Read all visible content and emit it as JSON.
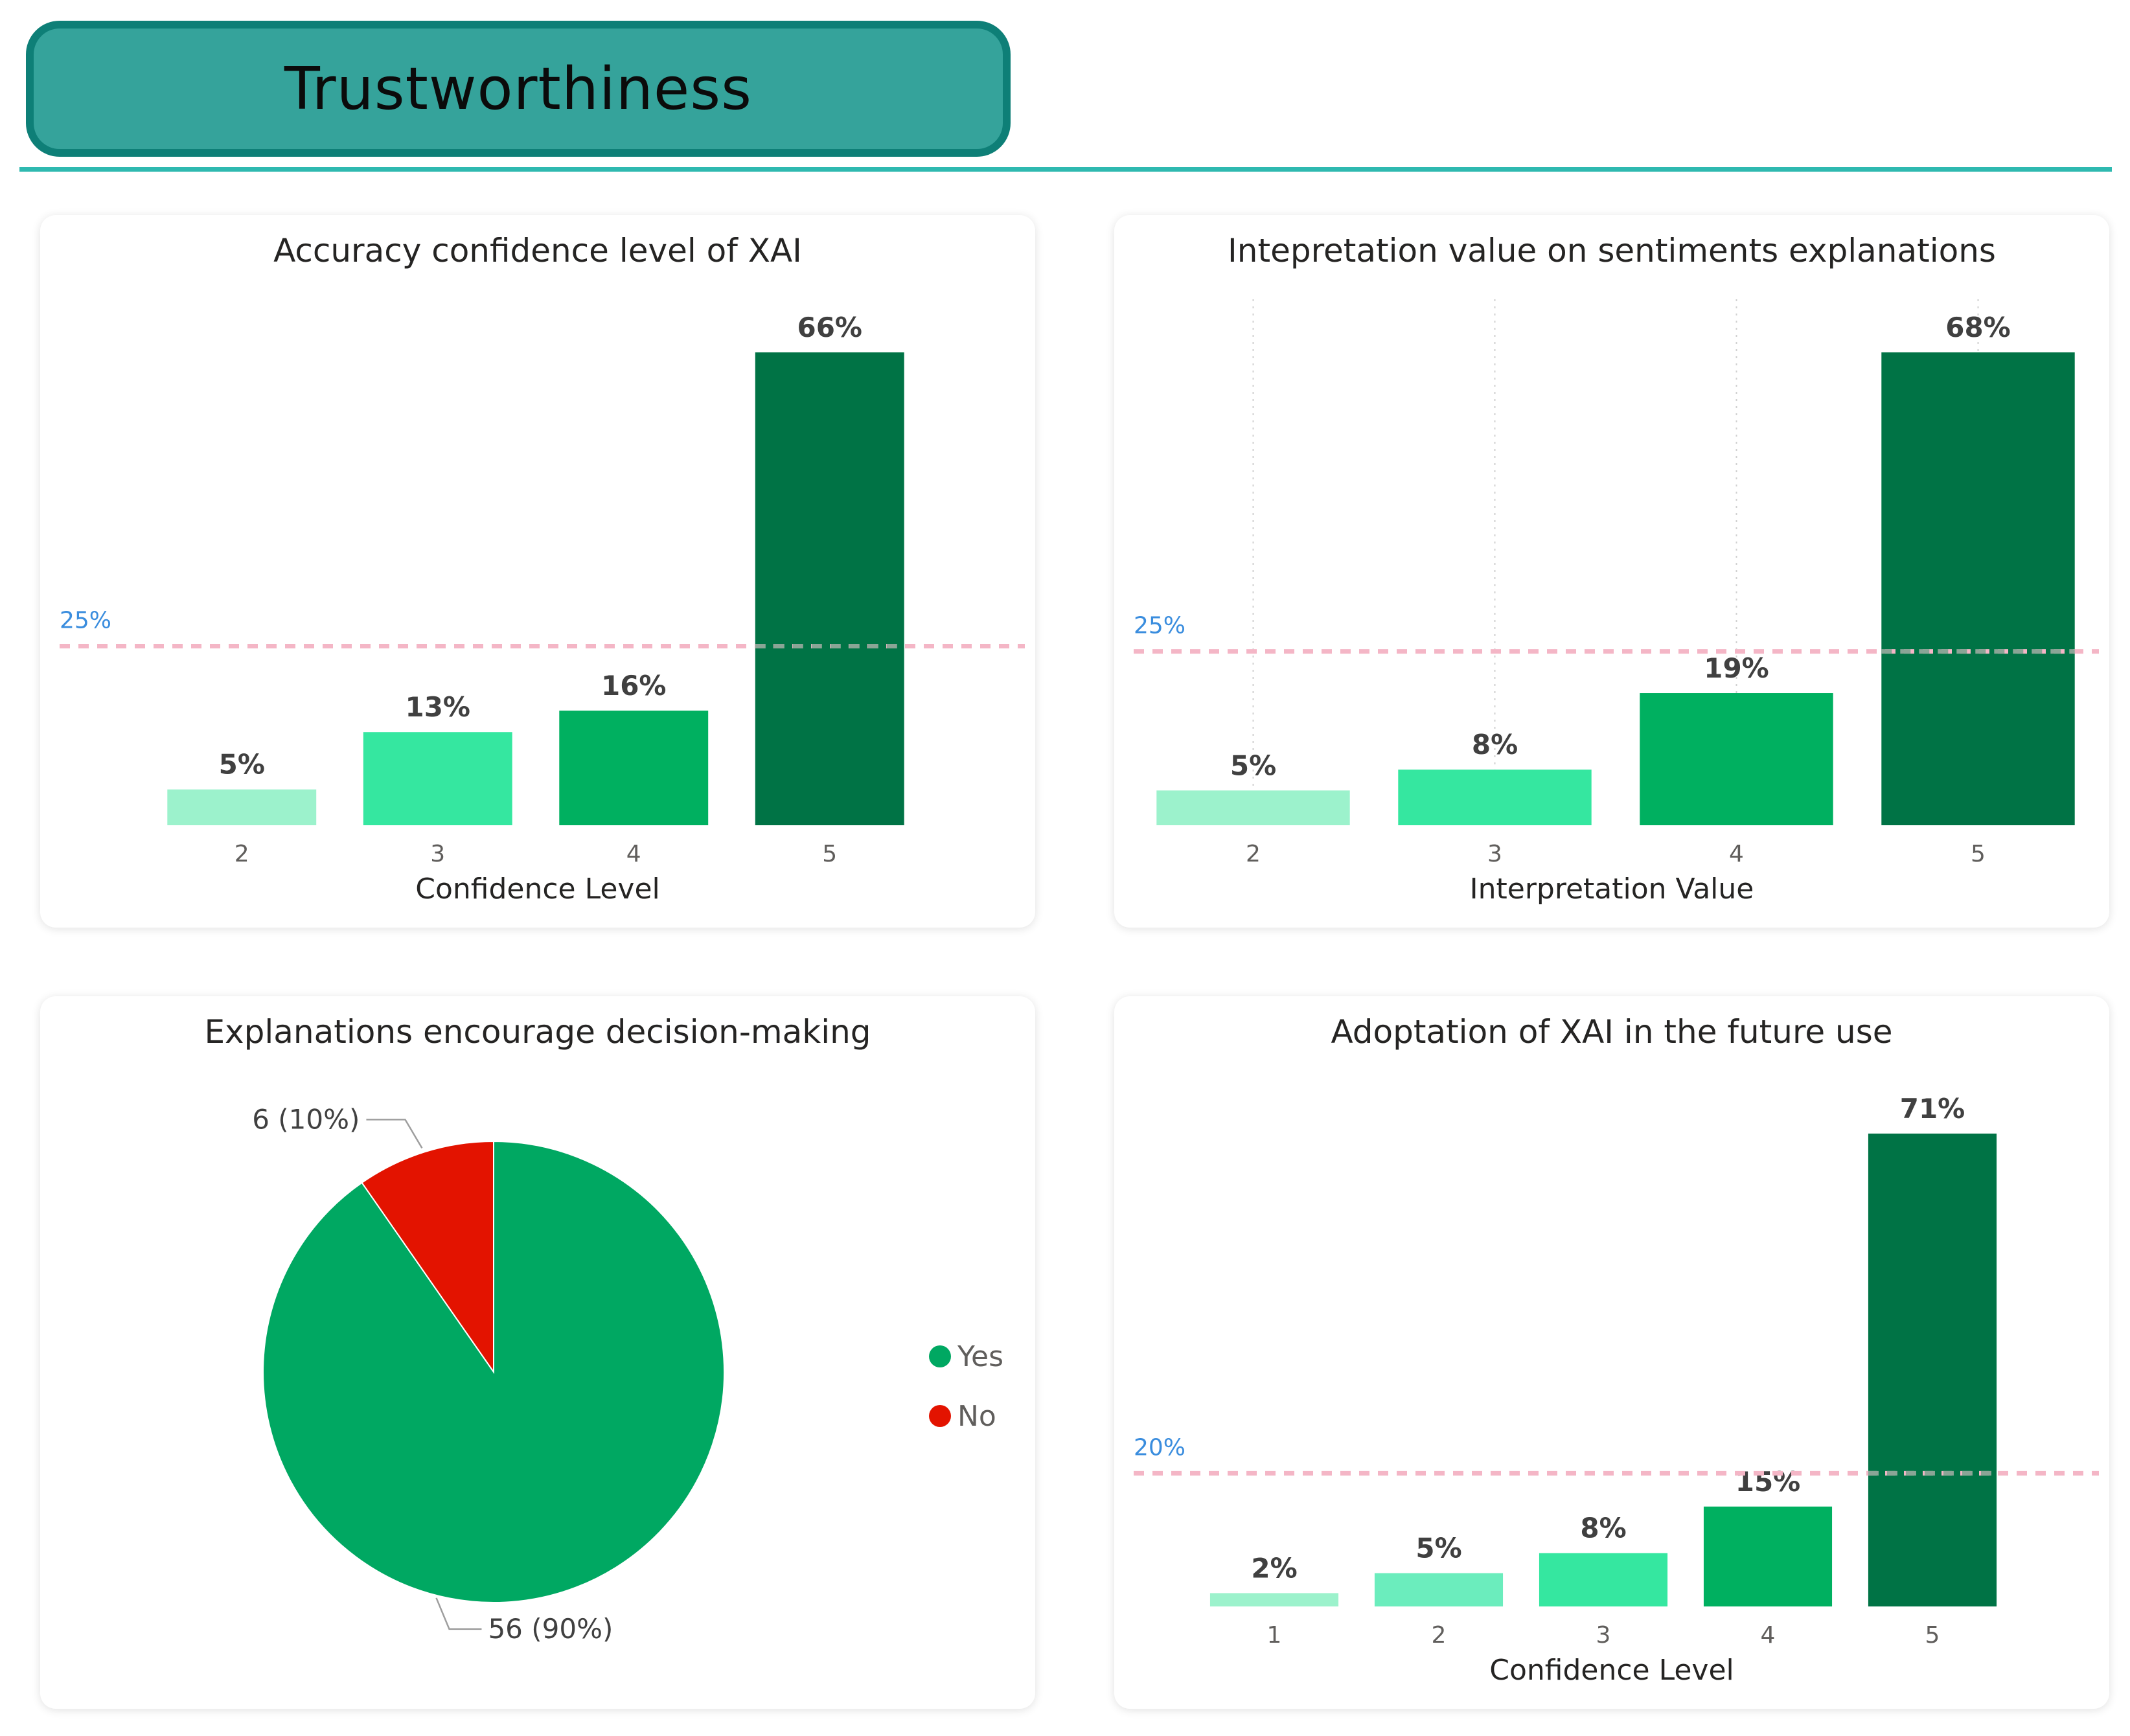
{
  "page": {
    "title": "Trustworthiness"
  },
  "chart_data": [
    {
      "id": "accuracy",
      "type": "bar",
      "title": "Accuracy confidence level of XAI",
      "xlabel": "Confidence Level",
      "ylabel": "",
      "categories": [
        "2",
        "3",
        "4",
        "5"
      ],
      "values": [
        5,
        13,
        16,
        66
      ],
      "value_labels": [
        "5%",
        "13%",
        "16%",
        "66%"
      ],
      "ylim": [
        0,
        66
      ],
      "reference_line": {
        "value": 25,
        "label": "25%",
        "color": "#f4b6c6"
      },
      "colors": [
        "#9cf2cc",
        "#35e7a0",
        "#00b060",
        "#007345"
      ],
      "gridlines": false
    },
    {
      "id": "interp",
      "type": "bar",
      "title": "Intepretation value on sentiments explanations",
      "xlabel": "Interpretation Value",
      "ylabel": "",
      "categories": [
        "2",
        "3",
        "4",
        "5"
      ],
      "values": [
        5,
        8,
        19,
        68
      ],
      "value_labels": [
        "5%",
        "8%",
        "19%",
        "68%"
      ],
      "ylim": [
        0,
        68
      ],
      "reference_line": {
        "value": 25,
        "label": "25%",
        "color": "#f4b6c6"
      },
      "colors": [
        "#9cf2cc",
        "#35e7a0",
        "#00b060",
        "#007345"
      ],
      "gridlines": true
    },
    {
      "id": "pie",
      "type": "pie",
      "title": "Explanations encourage decision-making",
      "slices": [
        {
          "name": "Yes",
          "value": 56,
          "label": "56 (90%)",
          "color": "#00a862"
        },
        {
          "name": "No",
          "value": 6,
          "label": "6 (10%)",
          "color": "#e31300"
        }
      ],
      "legend_position": "right"
    },
    {
      "id": "adopt",
      "type": "bar",
      "title": "Adoptation of XAI in the future use",
      "xlabel": "Confidence Level",
      "ylabel": "",
      "categories": [
        "1",
        "2",
        "3",
        "4",
        "5"
      ],
      "values": [
        2,
        5,
        8,
        15,
        71
      ],
      "value_labels": [
        "2%",
        "5%",
        "8%",
        "15%",
        "71%"
      ],
      "ylim": [
        0,
        71
      ],
      "reference_line": {
        "value": 20,
        "label": "20%",
        "color": "#f4b6c6"
      },
      "colors": [
        "#9cf2cc",
        "#6bedbd",
        "#35e7a0",
        "#00b060",
        "#007345"
      ],
      "gridlines": false
    }
  ]
}
